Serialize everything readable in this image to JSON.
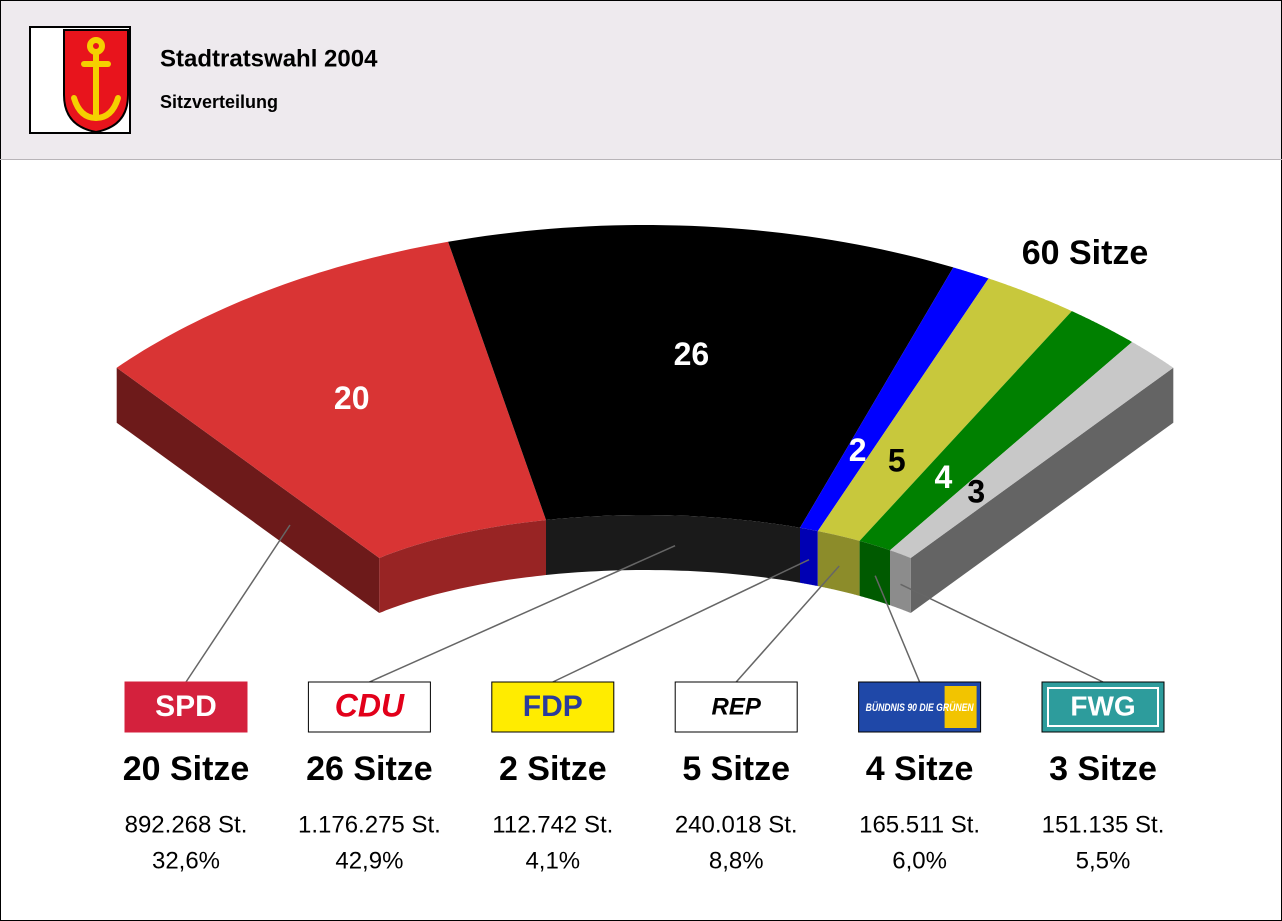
{
  "chart_data": {
    "type": "arc",
    "title": "Stadtratswahl 2004",
    "subtitle": "Sitzverteilung",
    "total_label": "60 Sitze",
    "categories": [
      "SPD",
      "CDU",
      "FDP",
      "REP",
      "BÜNDNIS 90 DIE GRÜNEN",
      "FWG"
    ],
    "values": [
      20,
      26,
      2,
      5,
      4,
      3
    ],
    "value_labels": [
      "20 Sitze",
      "26 Sitze",
      "2 Sitze",
      "5 Sitze",
      "4 Sitze",
      "3 Sitze"
    ],
    "colors": [
      "#d93434",
      "#000000",
      "#0000ff",
      "#c8c83c",
      "#008000",
      "#c8c8c8"
    ],
    "label_colors": [
      "#ffffff",
      "#ffffff",
      "#ffffff",
      "#000000",
      "#ffffff",
      "#000000"
    ],
    "votes": [
      892268,
      1176275,
      112742,
      240018,
      165511,
      151135
    ],
    "vote_labels": [
      "892.268 St.",
      "1.176.275 St.",
      "112.742 St.",
      "240.018 St.",
      "165.511 St.",
      "151.135 St."
    ],
    "shares": [
      32.6,
      42.9,
      4.1,
      8.8,
      6.0,
      5.5
    ],
    "share_labels": [
      "32,6%",
      "42,9%",
      "4,1%",
      "8,8%",
      "6,0%",
      "5,5%"
    ]
  }
}
